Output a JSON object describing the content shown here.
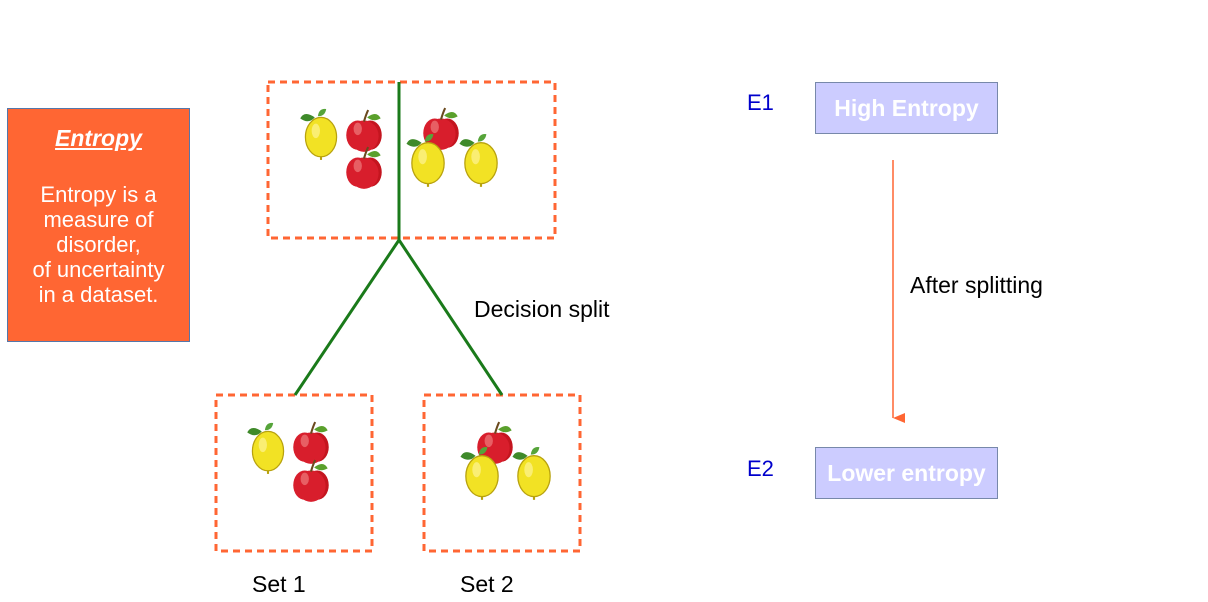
{
  "definition": {
    "title": "Entropy",
    "text": "Entropy is a\nmeasure of\ndisorder,\nof uncertainty\nin a dataset."
  },
  "split_label": "Decision split",
  "set1_label": "Set 1",
  "set2_label": "Set 2",
  "e1_label": "E1",
  "e1_box": "High Entropy",
  "e2_label": "E2",
  "e2_box": "Lower entropy",
  "arrow_label": "After splitting",
  "colors": {
    "definition_box": "#ff6633",
    "dashed_border": "#ff6633",
    "branch": "#1a7a1a",
    "entropy_box": "#ccccff",
    "arrow": "#ff6633",
    "apple": "#d81e2c",
    "lemon": "#f2e224"
  }
}
